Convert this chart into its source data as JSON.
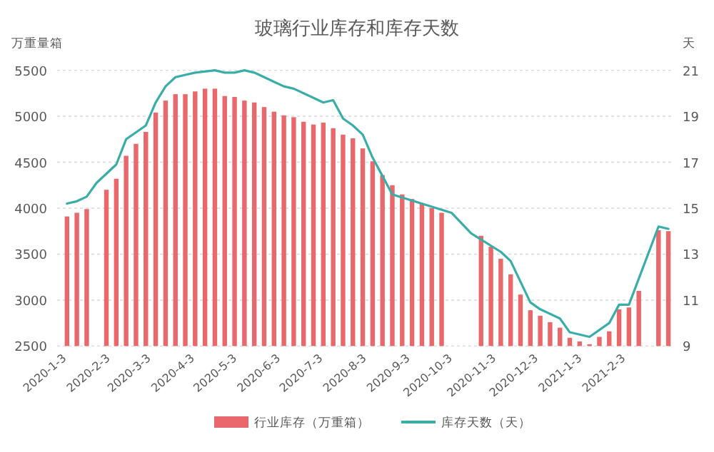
{
  "chart_data": {
    "type": "bar",
    "title": "玻璃行业库存和库存天数",
    "ylabel": "万重量箱",
    "y2label": "天",
    "xlim": [
      "2019-12-27",
      "2021-03-09"
    ],
    "xticks": [
      {
        "value": "2020-01-03",
        "label": "2020-1-3"
      },
      {
        "value": "2020-02-03",
        "label": "2020-2-3"
      },
      {
        "value": "2020-03-03",
        "label": "2020-3-3"
      },
      {
        "value": "2020-04-03",
        "label": "2020-4-3"
      },
      {
        "value": "2020-05-03",
        "label": "2020-5-3"
      },
      {
        "value": "2020-06-03",
        "label": "2020-6-3"
      },
      {
        "value": "2020-07-03",
        "label": "2020-7-3"
      },
      {
        "value": "2020-08-03",
        "label": "2020-8-3"
      },
      {
        "value": "2020-09-03",
        "label": "2020-9-3"
      },
      {
        "value": "2020-10-03",
        "label": "2020-10-3"
      },
      {
        "value": "2020-11-03",
        "label": "2020-11-3"
      },
      {
        "value": "2020-12-03",
        "label": "2020-12-3"
      },
      {
        "value": "2021-01-03",
        "label": "2021-1-3"
      },
      {
        "value": "2021-02-03",
        "label": "2021-2-3"
      }
    ],
    "ylim": [
      2500,
      5500
    ],
    "yticks": [
      2500,
      3000,
      3500,
      4000,
      4500,
      5000,
      5500
    ],
    "y2lim": [
      9,
      21
    ],
    "y2ticks": [
      9,
      11,
      13,
      15,
      17,
      19,
      21
    ],
    "grid": "y",
    "legend": "bottom",
    "series": [
      {
        "name": "行业库存（万重箱）",
        "color": "#e8686b",
        "x": [
          "2020-01-03",
          "2020-01-10",
          "2020-01-17",
          "2020-01-31",
          "2020-02-07",
          "2020-02-14",
          "2020-02-21",
          "2020-02-28",
          "2020-03-06",
          "2020-03-13",
          "2020-03-20",
          "2020-03-27",
          "2020-04-03",
          "2020-04-10",
          "2020-04-17",
          "2020-04-24",
          "2020-05-01",
          "2020-05-08",
          "2020-05-15",
          "2020-05-22",
          "2020-05-29",
          "2020-06-05",
          "2020-06-12",
          "2020-06-19",
          "2020-06-26",
          "2020-07-03",
          "2020-07-10",
          "2020-07-17",
          "2020-07-24",
          "2020-07-31",
          "2020-08-07",
          "2020-08-14",
          "2020-08-21",
          "2020-08-28",
          "2020-09-04",
          "2020-09-11",
          "2020-09-18",
          "2020-09-25",
          "2020-10-23",
          "2020-10-30",
          "2020-11-06",
          "2020-11-13",
          "2020-11-20",
          "2020-11-27",
          "2020-12-04",
          "2020-12-11",
          "2020-12-18",
          "2020-12-25",
          "2021-01-01",
          "2021-01-08",
          "2021-01-15",
          "2021-01-22",
          "2021-01-29",
          "2021-02-05",
          "2021-02-12",
          "2021-02-26",
          "2021-03-05"
        ],
        "values": [
          3910,
          3950,
          3990,
          4200,
          4320,
          4570,
          4700,
          4830,
          5040,
          5170,
          5240,
          5240,
          5270,
          5300,
          5300,
          5220,
          5210,
          5170,
          5150,
          5100,
          5050,
          5010,
          4990,
          4940,
          4910,
          4930,
          4870,
          4800,
          4760,
          4650,
          4510,
          4360,
          4250,
          4150,
          4100,
          4050,
          4000,
          3950,
          3700,
          3580,
          3450,
          3280,
          3060,
          2890,
          2830,
          2760,
          2700,
          2590,
          2550,
          2520,
          2600,
          2660,
          2900,
          2920,
          3100,
          3760,
          3750
        ]
      },
      {
        "name": "库存天数（天）",
        "type": "line",
        "axis": "y2",
        "color": "#3aada8",
        "x": [
          "2020-01-03",
          "2020-01-10",
          "2020-01-17",
          "2020-01-24",
          "2020-02-07",
          "2020-02-14",
          "2020-02-28",
          "2020-03-06",
          "2020-03-13",
          "2020-03-20",
          "2020-03-27",
          "2020-04-03",
          "2020-04-17",
          "2020-04-24",
          "2020-05-01",
          "2020-05-08",
          "2020-05-15",
          "2020-05-29",
          "2020-06-05",
          "2020-06-12",
          "2020-06-26",
          "2020-07-03",
          "2020-07-10",
          "2020-07-17",
          "2020-07-24",
          "2020-07-31",
          "2020-08-07",
          "2020-08-14",
          "2020-08-21",
          "2020-10-02",
          "2020-10-16",
          "2020-11-06",
          "2020-11-13",
          "2020-11-20",
          "2020-11-27",
          "2020-12-04",
          "2020-12-18",
          "2020-12-25",
          "2021-01-08",
          "2021-01-22",
          "2021-01-29",
          "2021-02-05",
          "2021-02-26",
          "2021-03-05"
        ],
        "values": [
          15.2,
          15.3,
          15.5,
          16.1,
          16.9,
          18.0,
          18.6,
          19.6,
          20.3,
          20.7,
          20.8,
          20.9,
          21.0,
          20.9,
          20.9,
          21.0,
          20.9,
          20.5,
          20.3,
          20.2,
          19.8,
          19.6,
          19.7,
          18.9,
          18.6,
          18.2,
          17.2,
          16.4,
          15.6,
          14.8,
          13.9,
          13.1,
          12.7,
          11.8,
          10.9,
          10.6,
          10.2,
          9.6,
          9.4,
          10.0,
          10.8,
          10.8,
          14.2,
          14.1
        ]
      }
    ]
  }
}
